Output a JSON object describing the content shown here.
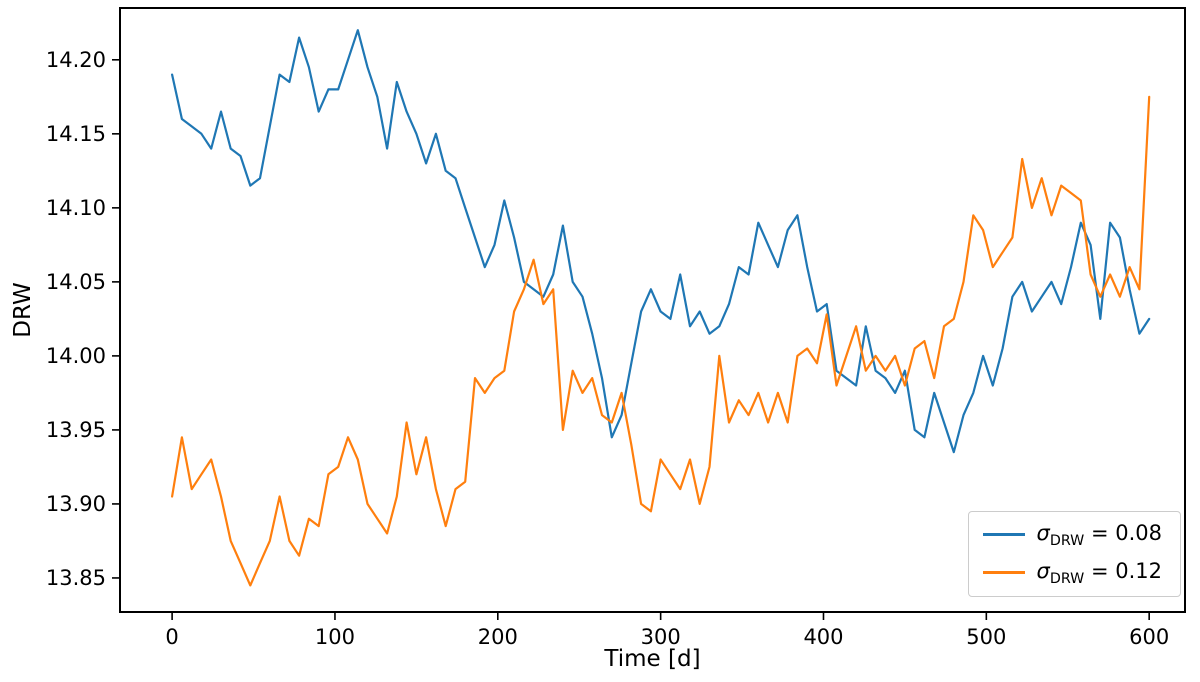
{
  "chart_data": {
    "type": "line",
    "title": "",
    "xlabel": "Time [d]",
    "ylabel": "DRW",
    "grid": false,
    "legend_position": "lower right",
    "xlim": [
      -32,
      622
    ],
    "ylim": [
      13.827,
      14.235
    ],
    "xticks": [
      0,
      100,
      200,
      300,
      400,
      500,
      600
    ],
    "xtick_labels": [
      "0",
      "100",
      "200",
      "300",
      "400",
      "500",
      "600"
    ],
    "yticks": [
      13.85,
      13.9,
      13.95,
      14.0,
      14.05,
      14.1,
      14.15,
      14.2
    ],
    "ytick_labels": [
      "13.85",
      "13.90",
      "13.95",
      "14.00",
      "14.05",
      "14.10",
      "14.15",
      "14.20"
    ],
    "x_start": 0,
    "x_step": 6,
    "series": [
      {
        "name": "sigma_DRW = 0.08",
        "color": "#1f77b4",
        "values": [
          14.19,
          14.16,
          14.155,
          14.15,
          14.14,
          14.165,
          14.14,
          14.135,
          14.115,
          14.12,
          14.155,
          14.19,
          14.185,
          14.215,
          14.195,
          14.165,
          14.18,
          14.18,
          14.2,
          14.22,
          14.195,
          14.175,
          14.14,
          14.185,
          14.165,
          14.15,
          14.13,
          14.15,
          14.125,
          14.12,
          14.1,
          14.08,
          14.06,
          14.075,
          14.105,
          14.08,
          14.05,
          14.045,
          14.04,
          14.055,
          14.088,
          14.05,
          14.04,
          14.015,
          13.985,
          13.945,
          13.96,
          13.995,
          14.03,
          14.045,
          14.03,
          14.025,
          14.055,
          14.02,
          14.03,
          14.015,
          14.02,
          14.035,
          14.06,
          14.055,
          14.09,
          14.075,
          14.06,
          14.085,
          14.095,
          14.06,
          14.03,
          14.035,
          13.99,
          13.985,
          13.98,
          14.02,
          13.99,
          13.985,
          13.975,
          13.99,
          13.95,
          13.945,
          13.975,
          13.955,
          13.935,
          13.96,
          13.975,
          14.0,
          13.98,
          14.005,
          14.04,
          14.05,
          14.03,
          14.04,
          14.05,
          14.035,
          14.06,
          14.09,
          14.075,
          14.025,
          14.09,
          14.08,
          14.045,
          14.015,
          14.025
        ]
      },
      {
        "name": "sigma_DRW = 0.12",
        "color": "#ff7f0e",
        "values": [
          13.905,
          13.945,
          13.91,
          13.92,
          13.93,
          13.905,
          13.875,
          13.86,
          13.845,
          13.86,
          13.875,
          13.905,
          13.875,
          13.865,
          13.89,
          13.885,
          13.92,
          13.925,
          13.945,
          13.93,
          13.9,
          13.89,
          13.88,
          13.905,
          13.955,
          13.92,
          13.945,
          13.91,
          13.885,
          13.91,
          13.915,
          13.985,
          13.975,
          13.985,
          13.99,
          14.03,
          14.045,
          14.065,
          14.035,
          14.045,
          13.95,
          13.99,
          13.975,
          13.985,
          13.96,
          13.955,
          13.975,
          13.94,
          13.9,
          13.895,
          13.93,
          13.92,
          13.91,
          13.93,
          13.9,
          13.925,
          14.0,
          13.955,
          13.97,
          13.96,
          13.975,
          13.955,
          13.975,
          13.955,
          14.0,
          14.005,
          13.995,
          14.028,
          13.98,
          14.0,
          14.02,
          13.99,
          14.0,
          13.99,
          14.0,
          13.98,
          14.005,
          14.01,
          13.985,
          14.02,
          14.025,
          14.05,
          14.095,
          14.085,
          14.06,
          14.07,
          14.08,
          14.133,
          14.1,
          14.12,
          14.095,
          14.115,
          14.11,
          14.105,
          14.055,
          14.04,
          14.055,
          14.04,
          14.06,
          14.045,
          14.175
        ]
      }
    ]
  },
  "axes": {
    "xlabel": "Time [d]",
    "ylabel": "DRW"
  },
  "legend": {
    "entries": [
      {
        "symbol": "σ",
        "subscript": "DRW",
        "rest": " = 0.08",
        "color": "#1f77b4"
      },
      {
        "symbol": "σ",
        "subscript": "DRW",
        "rest": " = 0.12",
        "color": "#ff7f0e"
      }
    ]
  }
}
